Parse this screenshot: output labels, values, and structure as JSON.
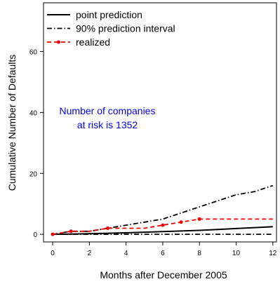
{
  "chart_data": {
    "type": "line",
    "xlabel": "Months after December 2005",
    "ylabel": "Cumulative Number of Defaults",
    "xlim": [
      -0.5,
      12.2
    ],
    "ylim": [
      -2.5,
      76
    ],
    "xticks": [
      0,
      2,
      4,
      6,
      8,
      10,
      12
    ],
    "yticks": [
      0,
      20,
      40,
      60
    ],
    "grid": false,
    "legend_position": "top-left",
    "annotation": {
      "line1": "Number of companies",
      "line2": "at risk is 1352",
      "color": "#0000ee"
    },
    "series": [
      {
        "name": "point prediction",
        "color": "#000000",
        "style": "solid",
        "x": [
          0,
          1,
          2,
          3,
          4,
          5,
          6,
          7,
          8,
          9,
          10,
          11,
          12
        ],
        "y": [
          0,
          0.1,
          0.2,
          0.35,
          0.5,
          0.7,
          0.9,
          1.1,
          1.3,
          1.6,
          1.9,
          2.2,
          2.5
        ]
      },
      {
        "name": "90% prediction interval",
        "color": "#000000",
        "style": "dotdash",
        "x": [
          0,
          1,
          2,
          3,
          4,
          5,
          6,
          7,
          8,
          9,
          10,
          11,
          12
        ],
        "y": [
          0,
          1,
          1,
          2,
          3,
          4,
          5,
          7,
          9,
          11,
          13,
          14,
          16
        ]
      },
      {
        "name": "",
        "color": "#000000",
        "style": "dotdash",
        "x": [
          0,
          12
        ],
        "y": [
          0,
          0
        ]
      },
      {
        "name": "realized",
        "color": "#ee0000",
        "style": "dashed",
        "markers": true,
        "x": [
          0,
          1,
          2,
          3,
          4,
          5,
          6,
          7,
          8,
          9,
          10,
          11,
          12
        ],
        "y": [
          0,
          1,
          1,
          2,
          2,
          2,
          3,
          4,
          5,
          5,
          5,
          5,
          5
        ]
      }
    ],
    "marker_x": [
      0,
      1,
      3,
      6,
      7,
      8
    ]
  }
}
